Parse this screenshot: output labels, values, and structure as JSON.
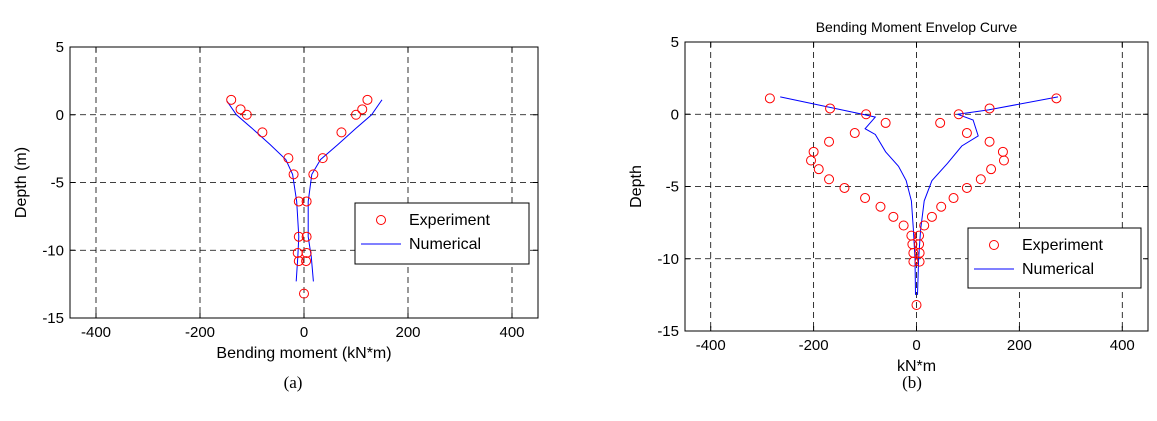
{
  "chart_data": [
    {
      "type": "scatter",
      "panel_label": "(a)",
      "title": "",
      "xlabel": "Bending moment (kN*m)",
      "ylabel": "Depth (m)",
      "xlim": [
        -450,
        450
      ],
      "ylim": [
        -15,
        5
      ],
      "xticks": [
        -400,
        -200,
        0,
        200,
        400
      ],
      "yticks": [
        5,
        0,
        -5,
        -10,
        -15
      ],
      "grid": true,
      "legend_position": "right",
      "series": [
        {
          "name": "Experiment",
          "kind": "markers",
          "color": "#ff0000",
          "points": [
            [
              -140,
              1.1
            ],
            [
              -122,
              0.4
            ],
            [
              -110,
              0.0
            ],
            [
              -80,
              -1.3
            ],
            [
              -30,
              -3.2
            ],
            [
              -20,
              -4.4
            ],
            [
              -10,
              -6.4
            ],
            [
              -10,
              -9.0
            ],
            [
              -12,
              -10.2
            ],
            [
              -10,
              -10.8
            ],
            [
              122,
              1.1
            ],
            [
              112,
              0.4
            ],
            [
              100,
              0.0
            ],
            [
              72,
              -1.3
            ],
            [
              36,
              -3.2
            ],
            [
              18,
              -4.4
            ],
            [
              5,
              -6.4
            ],
            [
              5,
              -9.0
            ],
            [
              5,
              -10.2
            ],
            [
              4,
              -10.8
            ],
            [
              0,
              -13.2
            ]
          ]
        },
        {
          "name": "Numerical",
          "kind": "line",
          "color": "#0000ff",
          "lines": [
            [
              [
                -148,
                1.0
              ],
              [
                -130,
                0.0
              ],
              [
                -100,
                -1.0
              ],
              [
                -65,
                -2.2
              ],
              [
                -35,
                -3.3
              ],
              [
                -22,
                -4.4
              ],
              [
                -14,
                -6.4
              ],
              [
                -10,
                -9.0
              ],
              [
                -12,
                -10.5
              ],
              [
                -15,
                -12.3
              ]
            ],
            [
              [
                150,
                1.1
              ],
              [
                130,
                0.0
              ],
              [
                100,
                -1.0
              ],
              [
                65,
                -2.2
              ],
              [
                32,
                -3.3
              ],
              [
                15,
                -4.4
              ],
              [
                8,
                -6.4
              ],
              [
                8,
                -9.0
              ],
              [
                14,
                -10.5
              ],
              [
                18,
                -12.3
              ]
            ]
          ]
        }
      ]
    },
    {
      "type": "scatter",
      "panel_label": "(b)",
      "title": "Bending Moment Envelop Curve",
      "xlabel": "kN*m",
      "ylabel": "Depth",
      "xlim": [
        -450,
        450
      ],
      "ylim": [
        -15,
        5
      ],
      "xticks": [
        -400,
        -200,
        0,
        200,
        400
      ],
      "yticks": [
        5,
        0,
        -5,
        -10,
        -15
      ],
      "grid": true,
      "legend_position": "bottom-right",
      "series": [
        {
          "name": "Experiment",
          "kind": "markers",
          "color": "#ff0000",
          "points": [
            [
              -285,
              1.1
            ],
            [
              -168,
              0.4
            ],
            [
              -98,
              0.0
            ],
            [
              -60,
              -0.6
            ],
            [
              -120,
              -1.3
            ],
            [
              -170,
              -1.9
            ],
            [
              -200,
              -2.6
            ],
            [
              -205,
              -3.2
            ],
            [
              -190,
              -3.8
            ],
            [
              -170,
              -4.5
            ],
            [
              -140,
              -5.1
            ],
            [
              -100,
              -5.8
            ],
            [
              -70,
              -6.4
            ],
            [
              -45,
              -7.1
            ],
            [
              -25,
              -7.7
            ],
            [
              -10,
              -8.4
            ],
            [
              -8,
              -9.0
            ],
            [
              -6,
              -9.6
            ],
            [
              -6,
              -10.2
            ],
            [
              0,
              -13.2
            ],
            [
              272,
              1.1
            ],
            [
              142,
              0.4
            ],
            [
              82,
              0.0
            ],
            [
              46,
              -0.6
            ],
            [
              98,
              -1.3
            ],
            [
              142,
              -1.9
            ],
            [
              168,
              -2.6
            ],
            [
              170,
              -3.2
            ],
            [
              145,
              -3.8
            ],
            [
              125,
              -4.5
            ],
            [
              98,
              -5.1
            ],
            [
              72,
              -5.8
            ],
            [
              48,
              -6.4
            ],
            [
              30,
              -7.1
            ],
            [
              15,
              -7.7
            ],
            [
              5,
              -8.4
            ],
            [
              5,
              -9.0
            ],
            [
              6,
              -9.6
            ],
            [
              6,
              -10.2
            ]
          ]
        },
        {
          "name": "Numerical",
          "kind": "line",
          "color": "#0000ff",
          "lines": [
            [
              [
                -265,
                1.2
              ],
              [
                -105,
                0.0
              ],
              [
                -80,
                -0.2
              ],
              [
                -100,
                -1.0
              ],
              [
                -80,
                -1.4
              ],
              [
                -60,
                -2.6
              ],
              [
                -35,
                -3.6
              ],
              [
                -20,
                -4.6
              ],
              [
                -10,
                -6.0
              ],
              [
                -6,
                -8.0
              ],
              [
                -3,
                -10.0
              ],
              [
                -2,
                -12.5
              ]
            ],
            [
              [
                275,
                1.2
              ],
              [
                140,
                0.3
              ],
              [
                80,
                0.0
              ],
              [
                110,
                -0.4
              ],
              [
                120,
                -1.5
              ],
              [
                88,
                -2.2
              ],
              [
                60,
                -3.4
              ],
              [
                30,
                -4.6
              ],
              [
                15,
                -6.0
              ],
              [
                8,
                -8.0
              ],
              [
                4,
                -10.0
              ],
              [
                2,
                -12.5
              ]
            ]
          ]
        }
      ]
    }
  ]
}
